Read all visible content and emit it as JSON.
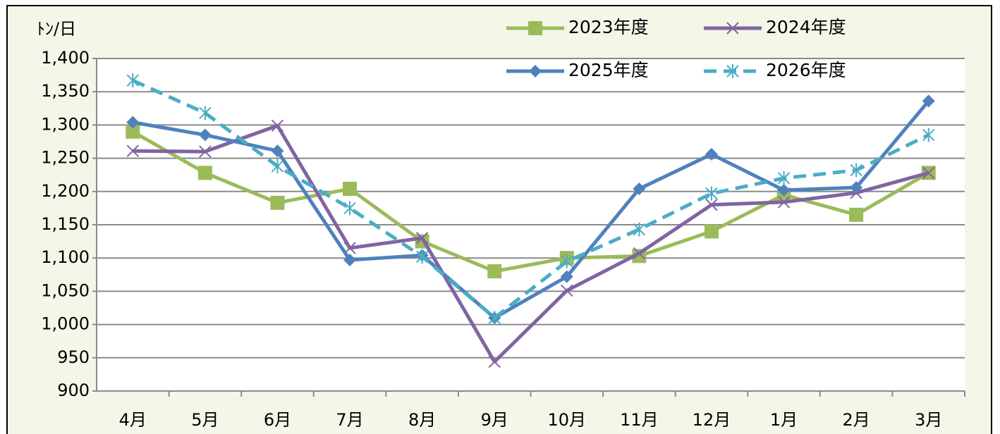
{
  "chart_data": {
    "type": "line",
    "y_axis_label": "ﾄﾝ/日",
    "categories": [
      "4月",
      "5月",
      "6月",
      "7月",
      "8月",
      "9月",
      "10月",
      "11月",
      "12月",
      "1月",
      "2月",
      "3月"
    ],
    "series": [
      {
        "name": "2023年度",
        "color": "#9bbb59",
        "marker": "square",
        "dashed": false,
        "values": [
          1290,
          1228,
          1183,
          1204,
          1125,
          1080,
          1100,
          1103,
          1140,
          1195,
          1165,
          1228
        ]
      },
      {
        "name": "2024年度",
        "color": "#8064a2",
        "marker": "x",
        "dashed": false,
        "values": [
          1261,
          1260,
          1299,
          1115,
          1130,
          944,
          1051,
          1107,
          1180,
          1184,
          1198,
          1228
        ]
      },
      {
        "name": "2025年度",
        "color": "#4f81bd",
        "marker": "diamond",
        "dashed": false,
        "values": [
          1304,
          1285,
          1261,
          1097,
          1104,
          1010,
          1072,
          1204,
          1256,
          1202,
          1206,
          1336
        ]
      },
      {
        "name": "2026年度",
        "color": "#4bacc6",
        "marker": "asterisk",
        "dashed": true,
        "values": [
          1367,
          1318,
          1238,
          1175,
          1102,
          1010,
          1095,
          1143,
          1197,
          1220,
          1232,
          1285
        ]
      }
    ],
    "ylim": [
      900,
      1400
    ],
    "yticks": [
      900,
      950,
      {
        "value": 1000,
        "label": "1,000"
      },
      {
        "value": 1050,
        "label": "1,050"
      },
      {
        "value": 1100,
        "label": "1,100"
      },
      {
        "value": 1150,
        "label": "1,150"
      },
      {
        "value": 1200,
        "label": "1,200"
      },
      {
        "value": 1250,
        "label": "1,250"
      },
      {
        "value": 1300,
        "label": "1,300"
      },
      {
        "value": 1350,
        "label": "1,350"
      },
      {
        "value": 1400,
        "label": "1,400"
      }
    ],
    "grid": true,
    "legend": "top-right"
  }
}
